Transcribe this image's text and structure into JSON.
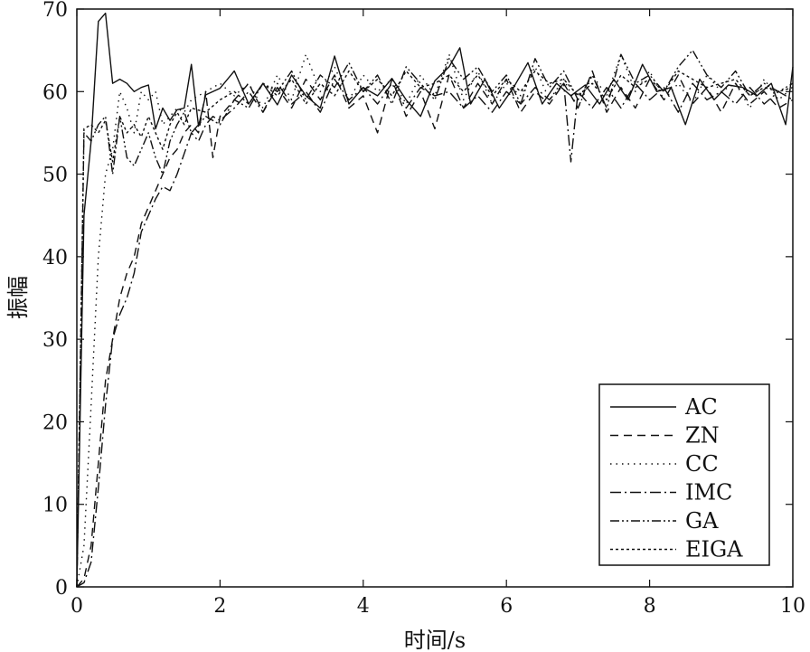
{
  "chart_data": {
    "type": "line",
    "xlabel": "时间/s",
    "ylabel": "振幅",
    "xlim": [
      0,
      10
    ],
    "ylim": [
      0,
      70
    ],
    "x_ticks": [
      0,
      2,
      4,
      6,
      8,
      10
    ],
    "y_ticks": [
      0,
      10,
      20,
      30,
      40,
      50,
      60,
      70
    ],
    "grid": false,
    "legend_position": "bottom-right",
    "series": [
      {
        "name": "AC",
        "style": "solid",
        "color": "#111111",
        "x": [
          0,
          0.1,
          0.2,
          0.3,
          0.4,
          0.5,
          0.6,
          0.7,
          0.8,
          0.9,
          1.0,
          1.1,
          1.2,
          1.3,
          1.4,
          1.5,
          1.6,
          1.7,
          1.8,
          1.9,
          2.0,
          2.2,
          2.4,
          2.6,
          2.8,
          3.0,
          3.2,
          3.4,
          3.6,
          3.8,
          4.0,
          4.2,
          4.4,
          4.6,
          4.8,
          5.0,
          5.2,
          5.35,
          5.5,
          5.7,
          5.9,
          6.1,
          6.3,
          6.5,
          6.7,
          6.9,
          7.1,
          7.3,
          7.5,
          7.7,
          7.9,
          8.1,
          8.3,
          8.5,
          8.7,
          8.9,
          9.1,
          9.3,
          9.5,
          9.7,
          9.9,
          10.0
        ],
        "values": [
          0,
          45,
          54,
          68.5,
          69.5,
          61,
          61.5,
          61,
          60,
          60.5,
          60.8,
          55.5,
          58,
          56.5,
          57.8,
          58,
          63.3,
          55.8,
          59.6,
          60,
          60.4,
          62.5,
          58.5,
          61,
          58.4,
          62,
          59.5,
          58,
          64.3,
          58.5,
          60.5,
          59.5,
          61.6,
          59,
          57,
          61.3,
          63,
          65.3,
          58.5,
          61.5,
          58,
          60.5,
          63.5,
          58.5,
          61,
          59.5,
          60.8,
          58.5,
          61.5,
          59,
          63.3,
          60,
          60.5,
          56,
          61.5,
          59,
          60.8,
          60.5,
          59.5,
          61,
          56,
          63
        ]
      },
      {
        "name": "ZN",
        "style": "dashed",
        "color": "#111111",
        "x": [
          0,
          0.1,
          0.2,
          0.3,
          0.4,
          0.5,
          0.6,
          0.7,
          0.8,
          0.9,
          1.0,
          1.1,
          1.2,
          1.3,
          1.4,
          1.5,
          1.6,
          1.7,
          1.8,
          1.9,
          2.0,
          2.2,
          2.4,
          2.6,
          2.8,
          3.0,
          3.2,
          3.4,
          3.6,
          3.8,
          4.0,
          4.2,
          4.4,
          4.6,
          4.8,
          5.0,
          5.2,
          5.4,
          5.6,
          5.8,
          6.0,
          6.2,
          6.4,
          6.6,
          6.8,
          7.0,
          7.2,
          7.4,
          7.6,
          7.8,
          8.0,
          8.2,
          8.4,
          8.6,
          8.8,
          9.0,
          9.2,
          9.4,
          9.6,
          9.8,
          10.0
        ],
        "values": [
          0,
          1,
          5,
          15,
          25,
          30,
          35,
          38,
          40,
          44,
          46,
          48,
          50,
          52,
          53,
          55,
          56,
          55,
          60,
          52,
          57,
          59,
          61,
          57.5,
          60.5,
          58,
          61.5,
          59,
          62,
          58,
          59.5,
          55,
          61.5,
          57,
          60,
          55.5,
          62,
          58,
          61,
          58.5,
          61.5,
          57.5,
          60,
          58.5,
          61,
          58,
          62.5,
          57.5,
          60.5,
          58,
          61.5,
          59,
          62,
          58.5,
          60.5,
          57.5,
          61,
          58.5,
          60,
          58,
          59
        ]
      },
      {
        "name": "CC",
        "style": "dotted",
        "color": "#111111",
        "x": [
          0,
          0.1,
          0.2,
          0.3,
          0.4,
          0.5,
          0.6,
          0.7,
          0.8,
          0.9,
          1.0,
          1.1,
          1.2,
          1.3,
          1.4,
          1.5,
          1.6,
          1.8,
          2.0,
          2.2,
          2.4,
          2.6,
          2.8,
          3.0,
          3.2,
          3.4,
          3.6,
          3.8,
          4.0,
          4.2,
          4.4,
          4.6,
          4.8,
          5.0,
          5.2,
          5.4,
          5.6,
          5.8,
          6.0,
          6.2,
          6.4,
          6.6,
          6.8,
          7.0,
          7.2,
          7.4,
          7.6,
          7.8,
          8.0,
          8.2,
          8.4,
          8.6,
          8.8,
          9.0,
          9.2,
          9.4,
          9.6,
          9.8,
          10.0
        ],
        "values": [
          0,
          5,
          22,
          40,
          50,
          53,
          60,
          58,
          55,
          60,
          59,
          60,
          56,
          57,
          58,
          57.5,
          59,
          60,
          61,
          59.5,
          61,
          58,
          62,
          59,
          64.5,
          60,
          63,
          59,
          62,
          60,
          61.5,
          58.5,
          62,
          59.5,
          64.5,
          59,
          62.5,
          58.5,
          61,
          59.5,
          63,
          59,
          61.5,
          58,
          62,
          59.5,
          64.5,
          60,
          62.5,
          59,
          61,
          58.5,
          62,
          60,
          61,
          58,
          61.5,
          59,
          60.5
        ]
      },
      {
        "name": "IMC",
        "style": "dashdot",
        "color": "#111111",
        "x": [
          0,
          0.1,
          0.2,
          0.3,
          0.4,
          0.5,
          0.6,
          0.7,
          0.8,
          0.9,
          1.0,
          1.1,
          1.2,
          1.3,
          1.4,
          1.5,
          1.6,
          1.7,
          1.8,
          1.9,
          2.0,
          2.2,
          2.4,
          2.6,
          2.8,
          3.0,
          3.2,
          3.4,
          3.6,
          3.8,
          4.0,
          4.2,
          4.4,
          4.6,
          4.8,
          5.0,
          5.2,
          5.4,
          5.6,
          5.8,
          6.0,
          6.2,
          6.4,
          6.6,
          6.8,
          6.9,
          7.0,
          7.2,
          7.4,
          7.6,
          7.8,
          8.0,
          8.2,
          8.4,
          8.6,
          8.8,
          9.0,
          9.2,
          9.4,
          9.6,
          9.8,
          10.0
        ],
        "values": [
          0,
          0.5,
          3,
          12,
          22,
          30,
          33,
          35,
          38,
          43,
          45,
          47,
          48.5,
          48,
          50,
          52.5,
          55,
          54,
          56,
          57,
          56.5,
          58,
          60,
          57.5,
          61,
          58.5,
          60,
          57.5,
          61.5,
          59,
          60.5,
          58.5,
          61,
          58,
          60.5,
          59.5,
          60,
          58,
          59.5,
          57.5,
          60,
          58.5,
          60.5,
          59,
          61,
          51.5,
          60,
          58,
          60.5,
          58,
          61,
          59,
          60.5,
          57.5,
          61,
          59,
          60,
          58.5,
          60.5,
          58.5,
          60,
          59
        ]
      },
      {
        "name": "GA",
        "style": "dashdotdot",
        "color": "#111111",
        "x": [
          0,
          0.1,
          0.2,
          0.3,
          0.4,
          0.5,
          0.6,
          0.7,
          0.8,
          0.9,
          1.0,
          1.1,
          1.2,
          1.3,
          1.4,
          1.5,
          1.6,
          1.8,
          2.0,
          2.2,
          2.4,
          2.6,
          2.8,
          3.0,
          3.2,
          3.4,
          3.6,
          3.8,
          4.0,
          4.2,
          4.4,
          4.6,
          4.8,
          5.0,
          5.2,
          5.4,
          5.6,
          5.8,
          6.0,
          6.2,
          6.4,
          6.6,
          6.8,
          7.0,
          7.2,
          7.4,
          7.6,
          7.8,
          8.0,
          8.2,
          8.4,
          8.6,
          8.8,
          9.0,
          9.2,
          9.4,
          9.6,
          9.8,
          10.0
        ],
        "values": [
          0,
          55,
          54,
          56,
          57,
          50,
          57,
          52,
          51,
          53,
          55,
          52,
          50,
          54,
          56,
          57.5,
          55,
          57,
          56,
          59,
          58,
          61,
          60,
          62.5,
          59,
          62,
          60.5,
          63.5,
          60,
          62,
          58.5,
          63,
          61,
          59,
          64,
          61.5,
          63,
          60,
          62,
          58.5,
          64,
          60.5,
          62.5,
          59,
          62,
          58,
          64.5,
          61,
          62,
          60,
          63,
          65,
          62,
          60.5,
          62.5,
          59.5,
          61,
          60,
          61
        ]
      },
      {
        "name": "EIGA",
        "style": "shortdash",
        "color": "#111111",
        "x": [
          0,
          0.1,
          0.2,
          0.3,
          0.4,
          0.5,
          0.6,
          0.7,
          0.8,
          0.9,
          1.0,
          1.1,
          1.2,
          1.3,
          1.4,
          1.5,
          1.6,
          1.8,
          2.0,
          2.2,
          2.4,
          2.6,
          2.8,
          3.0,
          3.2,
          3.4,
          3.6,
          3.8,
          4.0,
          4.2,
          4.4,
          4.6,
          4.8,
          5.0,
          5.2,
          5.4,
          5.6,
          5.8,
          6.0,
          6.2,
          6.4,
          6.6,
          6.8,
          7.0,
          7.2,
          7.4,
          7.6,
          7.8,
          8.0,
          8.2,
          8.4,
          8.6,
          8.8,
          9.0,
          9.2,
          9.4,
          9.6,
          9.8,
          10.0
        ],
        "values": [
          0,
          55.5,
          56,
          55,
          56.5,
          51.5,
          57,
          55,
          56,
          54.5,
          57,
          55,
          53,
          56,
          57.5,
          56,
          58,
          57.5,
          59,
          60,
          58.5,
          61,
          59.5,
          61.5,
          58.5,
          61,
          59.5,
          62.5,
          60,
          61.5,
          59.5,
          62.5,
          60.5,
          61,
          62,
          60,
          62,
          59.5,
          61.5,
          60,
          62.5,
          61,
          61.5,
          59.5,
          61,
          59,
          62,
          60.5,
          61.5,
          60,
          62.5,
          61.5,
          60.5,
          61,
          61.5,
          59.5,
          60.5,
          60,
          60.5
        ]
      }
    ]
  }
}
